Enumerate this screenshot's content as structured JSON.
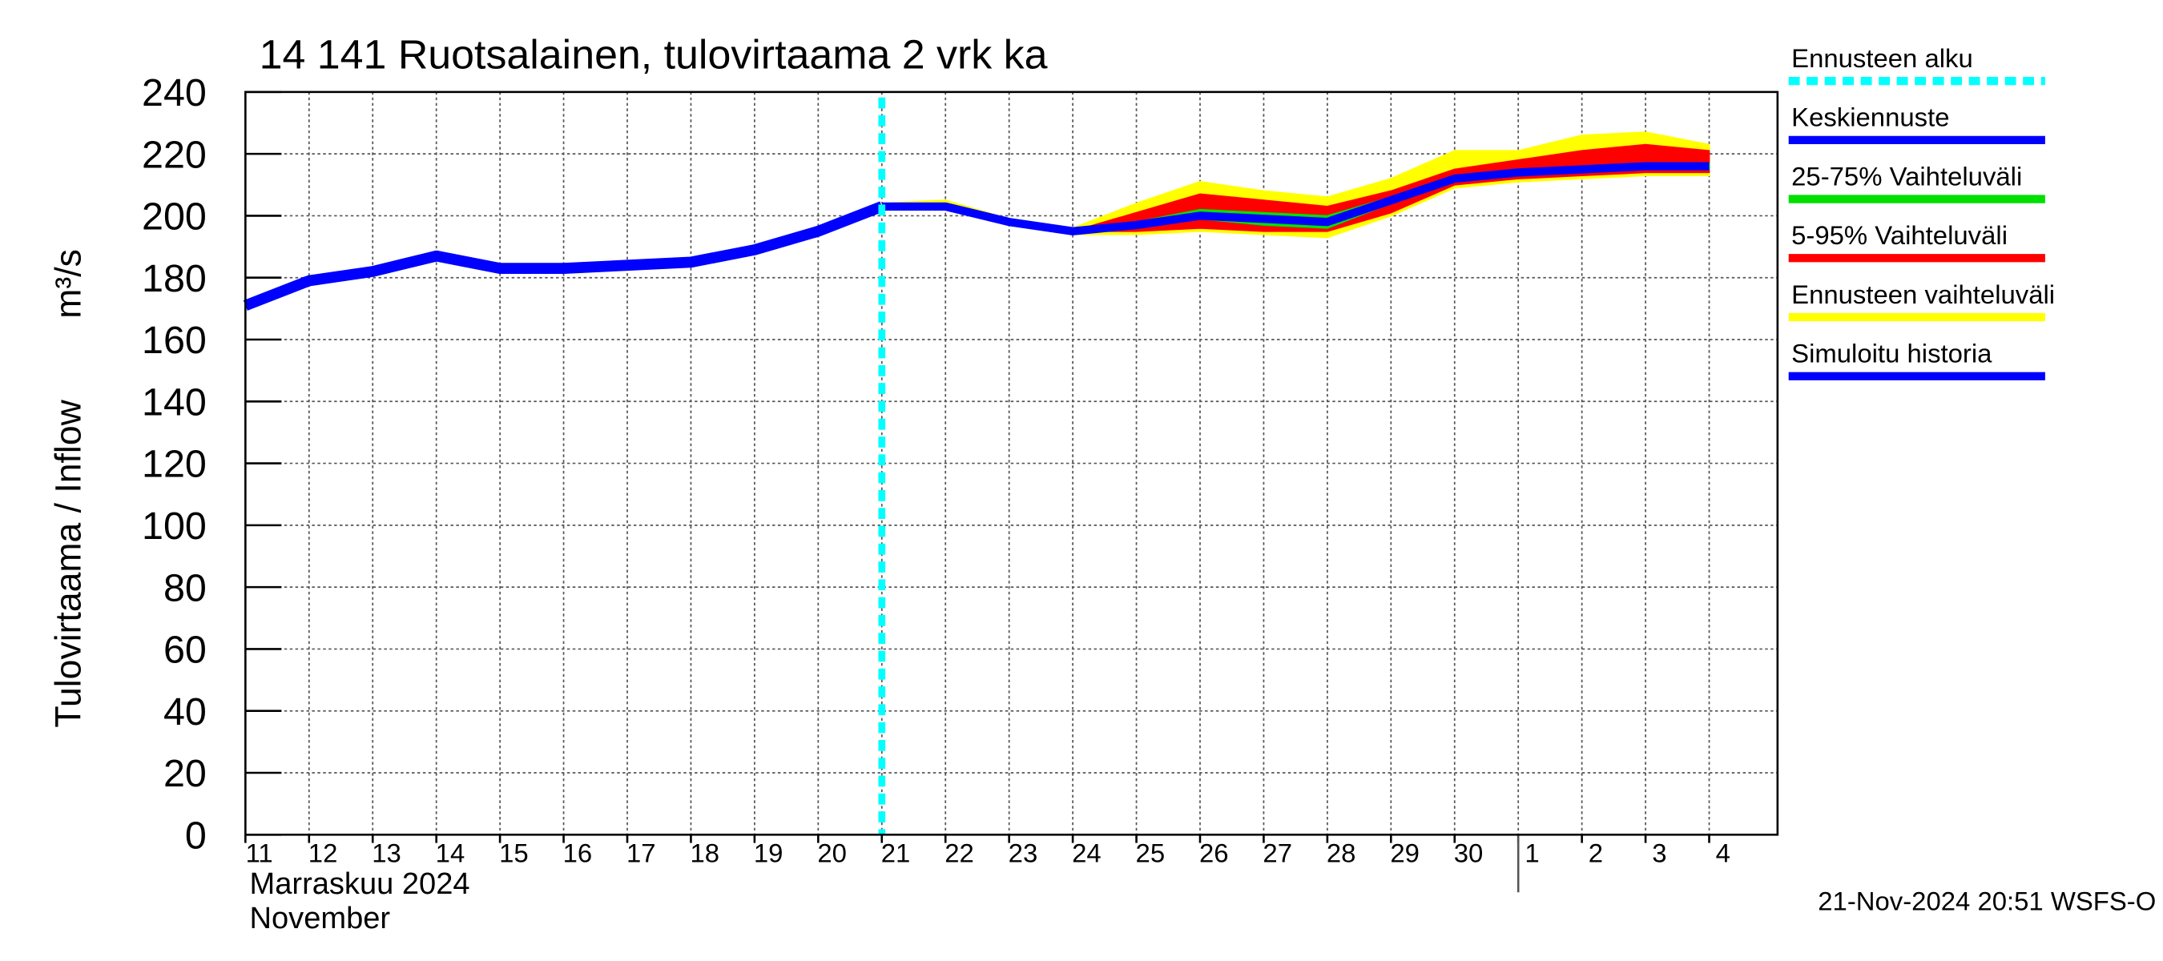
{
  "chart_data": {
    "type": "line",
    "title": "14 141 Ruotsalainen, tulovirtaama 2 vrk ka",
    "y_label": "Tulovirtaama / Inflow",
    "y_unit": "m³/s",
    "x_month_fi": "Marraskuu 2024",
    "x_month_en": "November",
    "footer": "21-Nov-2024 20:51 WSFS-O",
    "categories": [
      "11",
      "12",
      "13",
      "14",
      "15",
      "16",
      "17",
      "18",
      "19",
      "20",
      "21",
      "22",
      "23",
      "24",
      "25",
      "26",
      "27",
      "28",
      "29",
      "30",
      "1",
      "2",
      "3",
      "4"
    ],
    "ylim": [
      0,
      240
    ],
    "yticks": [
      0,
      20,
      40,
      60,
      80,
      100,
      120,
      140,
      160,
      180,
      200,
      220,
      240
    ],
    "grid": true,
    "forecast_start": "21",
    "forecast_start_name": "Ennusteen alku",
    "forecast_start_color": "#00ffff",
    "bands": [
      {
        "name": "Ennusteen vaihteluväli",
        "color": "#ffff00",
        "upper": [
          null,
          null,
          null,
          null,
          null,
          null,
          null,
          null,
          null,
          null,
          204,
          205,
          199,
          196,
          204,
          211,
          208,
          206,
          212,
          221,
          221,
          226,
          227,
          223
        ],
        "lower": [
          null,
          null,
          null,
          null,
          null,
          null,
          null,
          null,
          null,
          null,
          202,
          202,
          197,
          194,
          194,
          195,
          194,
          193,
          200,
          209,
          211,
          212,
          213,
          213
        ]
      },
      {
        "name": "5-95% Vaihteluväli",
        "color": "#ff0000",
        "upper": [
          null,
          null,
          null,
          null,
          null,
          null,
          null,
          null,
          null,
          null,
          203,
          203,
          198,
          195,
          201,
          207,
          205,
          203,
          208,
          215,
          218,
          221,
          223,
          221
        ],
        "lower": [
          null,
          null,
          null,
          null,
          null,
          null,
          null,
          null,
          null,
          null,
          203,
          203,
          198,
          195,
          195,
          196,
          195,
          195,
          201,
          210,
          212,
          213,
          214,
          214
        ]
      },
      {
        "name": "25-75% Vaihteluväli",
        "color": "#00e000",
        "upper": [
          null,
          null,
          null,
          null,
          null,
          null,
          null,
          null,
          null,
          null,
          203,
          203,
          198,
          195,
          198,
          202,
          201,
          200,
          206,
          213,
          215,
          216,
          217,
          217
        ],
        "lower": [
          null,
          null,
          null,
          null,
          null,
          null,
          null,
          null,
          null,
          null,
          203,
          203,
          198,
          195,
          196,
          199,
          197,
          196,
          204,
          211,
          213,
          214,
          215,
          215
        ]
      }
    ],
    "series": [
      {
        "name": "Simuloitu historia",
        "color": "#0000ff",
        "width": 8,
        "values": [
          171,
          179,
          182,
          187,
          183,
          183,
          184,
          185,
          189,
          195,
          203,
          null,
          null,
          null,
          null,
          null,
          null,
          null,
          null,
          null,
          null,
          null,
          null,
          null
        ]
      },
      {
        "name": "Keskiennuste",
        "color": "#0000ff",
        "width": 6,
        "values": [
          null,
          null,
          null,
          null,
          null,
          null,
          null,
          null,
          null,
          null,
          203,
          203,
          198,
          195,
          197,
          200,
          199,
          198,
          205,
          212,
          214,
          215,
          216,
          216
        ]
      }
    ]
  }
}
